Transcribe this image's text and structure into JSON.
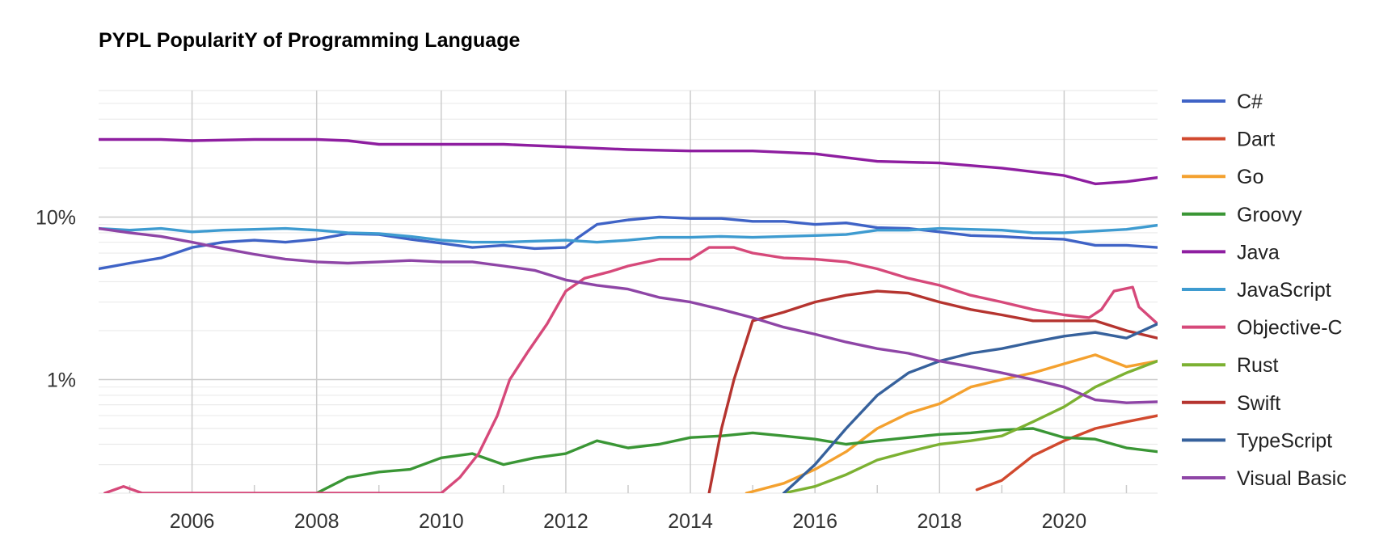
{
  "chart_data": {
    "type": "line",
    "title": "PYPL PopularitY of Programming Language",
    "xlabel": "",
    "ylabel": "",
    "y_scale": "log",
    "ylim": [
      0.2,
      60
    ],
    "xlim": [
      2004.5,
      2021.5
    ],
    "x_ticks": [
      2006,
      2008,
      2010,
      2012,
      2014,
      2016,
      2018,
      2020
    ],
    "x_tick_labels": [
      "2006",
      "2008",
      "2010",
      "2012",
      "2014",
      "2016",
      "2018",
      "2020"
    ],
    "y_ticks": [
      1,
      10
    ],
    "y_tick_labels": [
      "1%",
      "10%"
    ],
    "grid": true,
    "legend_position": "right",
    "series": [
      {
        "name": "C#",
        "color": "#3f63c6",
        "points": [
          [
            2004.5,
            4.8
          ],
          [
            2005,
            5.2
          ],
          [
            2005.5,
            5.6
          ],
          [
            2006,
            6.5
          ],
          [
            2006.5,
            7.0
          ],
          [
            2007,
            7.2
          ],
          [
            2007.5,
            7.0
          ],
          [
            2008,
            7.3
          ],
          [
            2008.5,
            7.9
          ],
          [
            2009,
            7.8
          ],
          [
            2009.5,
            7.3
          ],
          [
            2010,
            6.9
          ],
          [
            2010.5,
            6.5
          ],
          [
            2011,
            6.7
          ],
          [
            2011.5,
            6.4
          ],
          [
            2012,
            6.5
          ],
          [
            2012.2,
            7.5
          ],
          [
            2012.5,
            9.0
          ],
          [
            2013,
            9.6
          ],
          [
            2013.5,
            10.0
          ],
          [
            2014,
            9.8
          ],
          [
            2014.5,
            9.8
          ],
          [
            2015,
            9.4
          ],
          [
            2015.5,
            9.4
          ],
          [
            2016,
            9.0
          ],
          [
            2016.5,
            9.2
          ],
          [
            2017,
            8.6
          ],
          [
            2017.5,
            8.5
          ],
          [
            2018,
            8.1
          ],
          [
            2018.5,
            7.7
          ],
          [
            2019,
            7.6
          ],
          [
            2019.5,
            7.4
          ],
          [
            2020,
            7.3
          ],
          [
            2020.5,
            6.7
          ],
          [
            2021,
            6.7
          ],
          [
            2021.5,
            6.5
          ]
        ]
      },
      {
        "name": "Dart",
        "color": "#d1492e",
        "points": [
          [
            2018.6,
            0.21
          ],
          [
            2019,
            0.24
          ],
          [
            2019.5,
            0.34
          ],
          [
            2020,
            0.42
          ],
          [
            2020.5,
            0.5
          ],
          [
            2021,
            0.55
          ],
          [
            2021.5,
            0.6
          ]
        ]
      },
      {
        "name": "Go",
        "color": "#f4a12f",
        "points": [
          [
            2014.9,
            0.2
          ],
          [
            2015.5,
            0.23
          ],
          [
            2016,
            0.28
          ],
          [
            2016.5,
            0.36
          ],
          [
            2017,
            0.5
          ],
          [
            2017.5,
            0.62
          ],
          [
            2018,
            0.71
          ],
          [
            2018.5,
            0.9
          ],
          [
            2019,
            1.0
          ],
          [
            2019.5,
            1.1
          ],
          [
            2020,
            1.25
          ],
          [
            2020.5,
            1.42
          ],
          [
            2021,
            1.2
          ],
          [
            2021.5,
            1.3
          ]
        ]
      },
      {
        "name": "Groovy",
        "color": "#3a9635",
        "points": [
          [
            2008,
            0.2
          ],
          [
            2008.5,
            0.25
          ],
          [
            2009,
            0.27
          ],
          [
            2009.5,
            0.28
          ],
          [
            2010,
            0.33
          ],
          [
            2010.5,
            0.35
          ],
          [
            2011,
            0.3
          ],
          [
            2011.5,
            0.33
          ],
          [
            2012,
            0.35
          ],
          [
            2012.5,
            0.42
          ],
          [
            2013,
            0.38
          ],
          [
            2013.5,
            0.4
          ],
          [
            2014,
            0.44
          ],
          [
            2014.5,
            0.45
          ],
          [
            2015,
            0.47
          ],
          [
            2015.5,
            0.45
          ],
          [
            2016,
            0.43
          ],
          [
            2016.5,
            0.4
          ],
          [
            2017,
            0.42
          ],
          [
            2017.5,
            0.44
          ],
          [
            2018,
            0.46
          ],
          [
            2018.5,
            0.47
          ],
          [
            2019,
            0.49
          ],
          [
            2019.5,
            0.5
          ],
          [
            2020,
            0.44
          ],
          [
            2020.5,
            0.43
          ],
          [
            2021,
            0.38
          ],
          [
            2021.5,
            0.36
          ]
        ]
      },
      {
        "name": "Java",
        "color": "#8e1ea0",
        "points": [
          [
            2004.5,
            30
          ],
          [
            2005.5,
            30
          ],
          [
            2006,
            29.5
          ],
          [
            2007,
            30
          ],
          [
            2008,
            30
          ],
          [
            2008.5,
            29.5
          ],
          [
            2009,
            28
          ],
          [
            2010,
            28
          ],
          [
            2011,
            28
          ],
          [
            2012,
            27
          ],
          [
            2013,
            26
          ],
          [
            2014,
            25.5
          ],
          [
            2015,
            25.5
          ],
          [
            2016,
            24.5
          ],
          [
            2017,
            22
          ],
          [
            2018,
            21.5
          ],
          [
            2019,
            20
          ],
          [
            2020,
            18
          ],
          [
            2020.5,
            16
          ],
          [
            2021,
            16.5
          ],
          [
            2021.5,
            17.5
          ]
        ]
      },
      {
        "name": "JavaScript",
        "color": "#3e9bd0",
        "points": [
          [
            2004.5,
            8.5
          ],
          [
            2005,
            8.3
          ],
          [
            2005.5,
            8.5
          ],
          [
            2006,
            8.1
          ],
          [
            2006.5,
            8.3
          ],
          [
            2007,
            8.4
          ],
          [
            2007.5,
            8.5
          ],
          [
            2008,
            8.3
          ],
          [
            2008.5,
            8.0
          ],
          [
            2009,
            7.9
          ],
          [
            2009.5,
            7.6
          ],
          [
            2010,
            7.2
          ],
          [
            2010.5,
            7.0
          ],
          [
            2011,
            7.0
          ],
          [
            2011.5,
            7.1
          ],
          [
            2012,
            7.2
          ],
          [
            2012.5,
            7.0
          ],
          [
            2013,
            7.2
          ],
          [
            2013.5,
            7.5
          ],
          [
            2014,
            7.5
          ],
          [
            2014.5,
            7.6
          ],
          [
            2015,
            7.5
          ],
          [
            2015.5,
            7.6
          ],
          [
            2016,
            7.7
          ],
          [
            2016.5,
            7.8
          ],
          [
            2017,
            8.3
          ],
          [
            2017.5,
            8.3
          ],
          [
            2018,
            8.5
          ],
          [
            2018.5,
            8.4
          ],
          [
            2019,
            8.3
          ],
          [
            2019.5,
            8.0
          ],
          [
            2020,
            8.0
          ],
          [
            2020.5,
            8.2
          ],
          [
            2021,
            8.4
          ],
          [
            2021.5,
            8.9
          ]
        ]
      },
      {
        "name": "Objective-C",
        "color": "#d6497a",
        "points": [
          [
            2004.6,
            0.2
          ],
          [
            2004.9,
            0.22
          ],
          [
            2005.2,
            0.2
          ],
          [
            2010,
            0.2
          ],
          [
            2010.3,
            0.25
          ],
          [
            2010.6,
            0.35
          ],
          [
            2010.9,
            0.6
          ],
          [
            2011.1,
            1.0
          ],
          [
            2011.4,
            1.5
          ],
          [
            2011.7,
            2.2
          ],
          [
            2012,
            3.5
          ],
          [
            2012.3,
            4.2
          ],
          [
            2012.7,
            4.6
          ],
          [
            2013,
            5.0
          ],
          [
            2013.5,
            5.5
          ],
          [
            2014,
            5.5
          ],
          [
            2014.3,
            6.5
          ],
          [
            2014.7,
            6.5
          ],
          [
            2015,
            6.0
          ],
          [
            2015.5,
            5.6
          ],
          [
            2016,
            5.5
          ],
          [
            2016.5,
            5.3
          ],
          [
            2017,
            4.8
          ],
          [
            2017.5,
            4.2
          ],
          [
            2018,
            3.8
          ],
          [
            2018.5,
            3.3
          ],
          [
            2019,
            3.0
          ],
          [
            2019.5,
            2.7
          ],
          [
            2020,
            2.5
          ],
          [
            2020.4,
            2.4
          ],
          [
            2020.6,
            2.7
          ],
          [
            2020.8,
            3.5
          ],
          [
            2021.1,
            3.7
          ],
          [
            2021.2,
            2.8
          ],
          [
            2021.5,
            2.2
          ]
        ]
      },
      {
        "name": "Rust",
        "color": "#7cb132",
        "points": [
          [
            2015.5,
            0.2
          ],
          [
            2016,
            0.22
          ],
          [
            2016.5,
            0.26
          ],
          [
            2017,
            0.32
          ],
          [
            2017.5,
            0.36
          ],
          [
            2018,
            0.4
          ],
          [
            2018.5,
            0.42
          ],
          [
            2019,
            0.45
          ],
          [
            2019.5,
            0.55
          ],
          [
            2020,
            0.68
          ],
          [
            2020.5,
            0.9
          ],
          [
            2021,
            1.1
          ],
          [
            2021.5,
            1.3
          ]
        ]
      },
      {
        "name": "Swift",
        "color": "#b5342f",
        "points": [
          [
            2014.3,
            0.2
          ],
          [
            2014.5,
            0.5
          ],
          [
            2014.7,
            1.0
          ],
          [
            2015,
            2.3
          ],
          [
            2015.5,
            2.6
          ],
          [
            2016,
            3.0
          ],
          [
            2016.5,
            3.3
          ],
          [
            2017,
            3.5
          ],
          [
            2017.5,
            3.4
          ],
          [
            2018,
            3.0
          ],
          [
            2018.5,
            2.7
          ],
          [
            2019,
            2.5
          ],
          [
            2019.5,
            2.3
          ],
          [
            2020,
            2.3
          ],
          [
            2020.5,
            2.3
          ],
          [
            2021,
            2.0
          ],
          [
            2021.5,
            1.8
          ]
        ]
      },
      {
        "name": "TypeScript",
        "color": "#36619c",
        "points": [
          [
            2015.5,
            0.2
          ],
          [
            2016,
            0.3
          ],
          [
            2016.5,
            0.5
          ],
          [
            2017,
            0.8
          ],
          [
            2017.5,
            1.1
          ],
          [
            2018,
            1.3
          ],
          [
            2018.5,
            1.45
          ],
          [
            2019,
            1.55
          ],
          [
            2019.5,
            1.7
          ],
          [
            2020,
            1.85
          ],
          [
            2020.5,
            1.95
          ],
          [
            2021,
            1.8
          ],
          [
            2021.5,
            2.2
          ]
        ]
      },
      {
        "name": "Visual Basic",
        "color": "#8e45a6",
        "points": [
          [
            2004.5,
            8.5
          ],
          [
            2005,
            8.0
          ],
          [
            2005.5,
            7.6
          ],
          [
            2006,
            7.0
          ],
          [
            2006.5,
            6.4
          ],
          [
            2007,
            5.9
          ],
          [
            2007.5,
            5.5
          ],
          [
            2008,
            5.3
          ],
          [
            2008.5,
            5.2
          ],
          [
            2009,
            5.3
          ],
          [
            2009.5,
            5.4
          ],
          [
            2010,
            5.3
          ],
          [
            2010.5,
            5.3
          ],
          [
            2011,
            5.0
          ],
          [
            2011.5,
            4.7
          ],
          [
            2012,
            4.1
          ],
          [
            2012.5,
            3.8
          ],
          [
            2013,
            3.6
          ],
          [
            2013.5,
            3.2
          ],
          [
            2014,
            3.0
          ],
          [
            2014.5,
            2.7
          ],
          [
            2015,
            2.4
          ],
          [
            2015.5,
            2.1
          ],
          [
            2016,
            1.9
          ],
          [
            2016.5,
            1.7
          ],
          [
            2017,
            1.55
          ],
          [
            2017.5,
            1.45
          ],
          [
            2018,
            1.3
          ],
          [
            2018.5,
            1.2
          ],
          [
            2019,
            1.1
          ],
          [
            2019.5,
            1.0
          ],
          [
            2020,
            0.9
          ],
          [
            2020.5,
            0.75
          ],
          [
            2021,
            0.72
          ],
          [
            2021.5,
            0.73
          ]
        ]
      }
    ]
  }
}
